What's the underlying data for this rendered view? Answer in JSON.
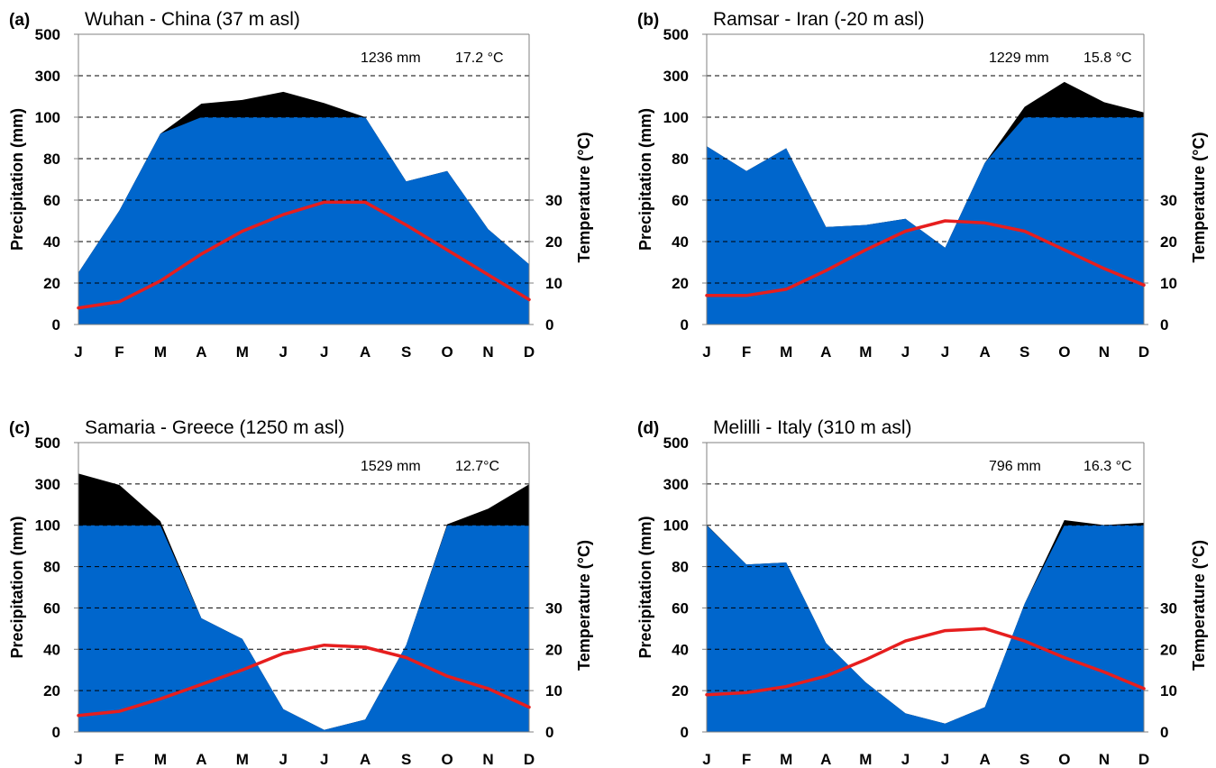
{
  "chart_data": [
    {
      "type": "area",
      "panel_label": "(a)",
      "title": "Wuhan - China (37 m asl)",
      "annual_precipitation": "1236 mm",
      "mean_temperature": "17.2 °C",
      "categories": [
        "J",
        "F",
        "M",
        "A",
        "M",
        "J",
        "J",
        "A",
        "S",
        "O",
        "N",
        "D"
      ],
      "ylabel": "Precipitation (mm)",
      "y2label": "Temperature (°C)",
      "y_ticks": [
        "0",
        "20",
        "40",
        "60",
        "80",
        "100",
        "300",
        "500"
      ],
      "y2_ticks": [
        "0",
        "10",
        "20",
        "30"
      ],
      "series": [
        {
          "name": "Precipitation",
          "values": [
            25,
            55,
            92,
            165,
            183,
            222,
            168,
            100,
            69,
            74,
            46,
            29
          ]
        },
        {
          "name": "Temperature",
          "values": [
            4,
            5.5,
            10.5,
            17,
            22.5,
            26.5,
            29.5,
            29.5,
            24,
            18,
            12,
            6
          ]
        }
      ]
    },
    {
      "type": "area",
      "panel_label": "(b)",
      "title": "Ramsar - Iran (-20 m asl)",
      "annual_precipitation": "1229 mm",
      "mean_temperature": "15.8 °C",
      "categories": [
        "J",
        "F",
        "M",
        "A",
        "M",
        "J",
        "J",
        "A",
        "S",
        "O",
        "N",
        "D"
      ],
      "ylabel": "Precipitation (mm)",
      "y2label": "Temperature (°C)",
      "y_ticks": [
        "0",
        "20",
        "40",
        "60",
        "80",
        "100",
        "300",
        "500"
      ],
      "y2_ticks": [
        "0",
        "10",
        "20",
        "30"
      ],
      "series": [
        {
          "name": "Precipitation",
          "values": [
            86,
            74,
            85,
            47,
            48,
            51,
            37,
            78,
            150,
            270,
            172,
            123
          ]
        },
        {
          "name": "Temperature",
          "values": [
            7,
            7,
            8.5,
            13,
            18,
            22.5,
            25,
            24.5,
            22.5,
            18,
            13.5,
            9.5
          ]
        }
      ]
    },
    {
      "type": "area",
      "panel_label": "(c)",
      "title": "Samaria - Greece (1250 m asl)",
      "annual_precipitation": "1529 mm",
      "mean_temperature": "12.7°C",
      "categories": [
        "J",
        "F",
        "M",
        "A",
        "M",
        "J",
        "J",
        "A",
        "S",
        "O",
        "N",
        "D"
      ],
      "ylabel": "Precipitation (mm)",
      "y2label": "Temperature (°C)",
      "y_ticks": [
        "0",
        "20",
        "40",
        "60",
        "80",
        "100",
        "300",
        "500"
      ],
      "y2_ticks": [
        "0",
        "10",
        "20",
        "30"
      ],
      "series": [
        {
          "name": "Precipitation",
          "values": [
            350,
            295,
            120,
            55,
            45,
            11,
            1,
            6,
            42,
            105,
            180,
            298
          ]
        },
        {
          "name": "Temperature",
          "values": [
            4,
            5,
            8,
            11.5,
            15,
            19,
            21,
            20.5,
            18,
            13.5,
            10.5,
            6
          ]
        }
      ]
    },
    {
      "type": "area",
      "panel_label": "(d)",
      "title": "Melilli - Italy (310 m asl)",
      "annual_precipitation": "796 mm",
      "mean_temperature": "16.3 °C",
      "categories": [
        "J",
        "F",
        "M",
        "A",
        "M",
        "J",
        "J",
        "A",
        "S",
        "O",
        "N",
        "D"
      ],
      "ylabel": "Precipitation (mm)",
      "y2label": "Temperature (°C)",
      "y_ticks": [
        "0",
        "20",
        "40",
        "60",
        "80",
        "100",
        "300",
        "500"
      ],
      "y2_ticks": [
        "0",
        "10",
        "20",
        "30"
      ],
      "series": [
        {
          "name": "Precipitation",
          "values": [
            102,
            81,
            82,
            43,
            24,
            9,
            4,
            12,
            62,
            125,
            101,
            112
          ]
        },
        {
          "name": "Temperature",
          "values": [
            9,
            9.5,
            11,
            13.5,
            17.5,
            22,
            24.5,
            25,
            22,
            18,
            14.5,
            10.5
          ]
        }
      ]
    }
  ],
  "colors": {
    "precipitation_fill": "#0066cc",
    "excess_fill": "#000000",
    "temperature_line": "#e61e1e",
    "gridline": "#000000"
  }
}
